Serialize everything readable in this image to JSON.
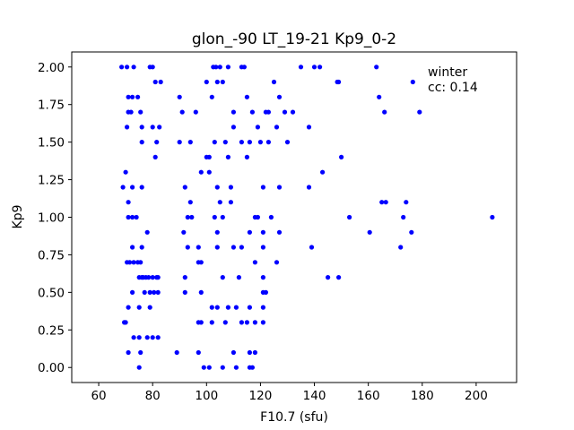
{
  "chart_data": {
    "type": "scatter",
    "title": "glon_-90 LT_19-21 Kp9_0-2",
    "xlabel": "F10.7 (sfu)",
    "ylabel": "Kp9",
    "xlim": [
      50,
      215
    ],
    "ylim": [
      -0.1,
      2.1
    ],
    "xticks": [
      60,
      80,
      100,
      120,
      140,
      160,
      180,
      200
    ],
    "yticks": [
      0.0,
      0.25,
      0.5,
      0.75,
      1.0,
      1.25,
      1.5,
      1.75,
      2.0
    ],
    "ytick_labels": [
      "0.00",
      "0.25",
      "0.50",
      "0.75",
      "1.00",
      "1.25",
      "1.50",
      "1.75",
      "2.00"
    ],
    "annotations": [
      "winter",
      "cc: 0.14"
    ],
    "marker_color": "#0000ff",
    "grid": false,
    "points": [
      [
        68.5,
        2.0
      ],
      [
        70.5,
        2.0
      ],
      [
        73,
        2.0
      ],
      [
        79,
        2.0
      ],
      [
        80,
        2.0
      ],
      [
        81,
        1.9
      ],
      [
        83,
        1.9
      ],
      [
        71,
        1.8
      ],
      [
        72.5,
        1.8
      ],
      [
        74.5,
        1.8
      ],
      [
        71,
        1.7
      ],
      [
        72,
        1.7
      ],
      [
        75.5,
        1.7
      ],
      [
        70.5,
        1.6
      ],
      [
        76,
        1.6
      ],
      [
        80,
        1.6
      ],
      [
        82.5,
        1.6
      ],
      [
        76,
        1.5
      ],
      [
        81.5,
        1.5
      ],
      [
        81,
        1.4
      ],
      [
        70,
        1.3
      ],
      [
        69,
        1.2
      ],
      [
        72.5,
        1.2
      ],
      [
        76,
        1.2
      ],
      [
        71,
        1.1
      ],
      [
        71,
        1.0
      ],
      [
        72.5,
        1.0
      ],
      [
        74,
        1.0
      ],
      [
        78,
        0.9
      ],
      [
        72.5,
        0.8
      ],
      [
        76,
        0.8
      ],
      [
        70.5,
        0.7
      ],
      [
        71.5,
        0.7
      ],
      [
        73,
        0.7
      ],
      [
        74.5,
        0.7
      ],
      [
        75.5,
        0.7
      ],
      [
        75,
        0.6
      ],
      [
        76,
        0.6
      ],
      [
        76.5,
        0.6
      ],
      [
        77.5,
        0.6
      ],
      [
        78.5,
        0.6
      ],
      [
        80,
        0.6
      ],
      [
        81.5,
        0.6
      ],
      [
        82,
        0.6
      ],
      [
        72.5,
        0.5
      ],
      [
        77,
        0.5
      ],
      [
        79,
        0.5
      ],
      [
        80.5,
        0.5
      ],
      [
        82,
        0.5
      ],
      [
        71,
        0.4
      ],
      [
        75,
        0.4
      ],
      [
        79,
        0.4
      ],
      [
        69.5,
        0.3
      ],
      [
        70,
        0.3
      ],
      [
        73,
        0.2
      ],
      [
        75,
        0.2
      ],
      [
        78,
        0.2
      ],
      [
        80,
        0.2
      ],
      [
        82,
        0.2
      ],
      [
        71,
        0.1
      ],
      [
        75.5,
        0.1
      ],
      [
        75,
        0.0
      ],
      [
        102.5,
        2.0
      ],
      [
        103.5,
        2.0
      ],
      [
        105,
        2.0
      ],
      [
        108,
        2.0
      ],
      [
        113,
        2.0
      ],
      [
        114,
        2.0
      ],
      [
        100,
        1.9
      ],
      [
        104,
        1.9
      ],
      [
        106,
        1.9
      ],
      [
        90,
        1.8
      ],
      [
        102,
        1.8
      ],
      [
        115,
        1.8
      ],
      [
        91,
        1.7
      ],
      [
        96,
        1.7
      ],
      [
        110,
        1.7
      ],
      [
        117,
        1.7
      ],
      [
        110,
        1.6
      ],
      [
        119,
        1.6
      ],
      [
        90,
        1.5
      ],
      [
        94,
        1.5
      ],
      [
        103,
        1.5
      ],
      [
        107,
        1.5
      ],
      [
        113,
        1.5
      ],
      [
        116,
        1.5
      ],
      [
        108,
        1.4
      ],
      [
        101,
        1.4
      ],
      [
        100,
        1.4
      ],
      [
        115,
        1.4
      ],
      [
        98,
        1.3
      ],
      [
        101,
        1.3
      ],
      [
        92,
        1.2
      ],
      [
        104,
        1.2
      ],
      [
        109,
        1.2
      ],
      [
        94,
        1.1
      ],
      [
        105,
        1.1
      ],
      [
        109,
        1.1
      ],
      [
        93,
        1.0
      ],
      [
        94.5,
        1.0
      ],
      [
        103,
        1.0
      ],
      [
        106,
        1.0
      ],
      [
        91.5,
        0.9
      ],
      [
        104,
        0.9
      ],
      [
        116,
        0.9
      ],
      [
        93,
        0.8
      ],
      [
        97,
        0.8
      ],
      [
        104,
        0.8
      ],
      [
        110,
        0.8
      ],
      [
        113,
        0.8
      ],
      [
        97,
        0.7
      ],
      [
        98,
        0.7
      ],
      [
        92,
        0.6
      ],
      [
        106,
        0.6
      ],
      [
        112,
        0.6
      ],
      [
        92,
        0.5
      ],
      [
        98,
        0.5
      ],
      [
        102,
        0.4
      ],
      [
        104,
        0.4
      ],
      [
        108,
        0.4
      ],
      [
        111,
        0.4
      ],
      [
        116,
        0.4
      ],
      [
        97,
        0.3
      ],
      [
        98,
        0.3
      ],
      [
        102,
        0.3
      ],
      [
        107,
        0.3
      ],
      [
        113,
        0.3
      ],
      [
        115,
        0.3
      ],
      [
        89,
        0.1
      ],
      [
        97,
        0.1
      ],
      [
        110,
        0.1
      ],
      [
        116,
        0.1
      ],
      [
        99,
        0.0
      ],
      [
        101,
        0.0
      ],
      [
        106,
        0.0
      ],
      [
        111,
        0.0
      ],
      [
        116,
        0.0
      ],
      [
        135,
        2.0
      ],
      [
        140,
        2.0
      ],
      [
        142,
        2.0
      ],
      [
        125,
        1.9
      ],
      [
        148.5,
        1.9
      ],
      [
        149,
        1.9
      ],
      [
        127,
        1.8
      ],
      [
        122,
        1.7
      ],
      [
        123,
        1.7
      ],
      [
        129,
        1.7
      ],
      [
        132,
        1.7
      ],
      [
        126,
        1.6
      ],
      [
        138,
        1.6
      ],
      [
        120,
        1.5
      ],
      [
        123,
        1.5
      ],
      [
        130,
        1.5
      ],
      [
        150,
        1.4
      ],
      [
        143,
        1.3
      ],
      [
        127,
        1.2
      ],
      [
        138,
        1.2
      ],
      [
        121,
        1.2
      ],
      [
        118,
        1.0
      ],
      [
        119,
        1.0
      ],
      [
        124,
        1.0
      ],
      [
        153,
        1.0
      ],
      [
        121,
        0.9
      ],
      [
        127,
        0.9
      ],
      [
        121,
        0.8
      ],
      [
        139,
        0.8
      ],
      [
        118,
        0.7
      ],
      [
        126,
        0.7
      ],
      [
        121,
        0.6
      ],
      [
        145,
        0.6
      ],
      [
        149,
        0.6
      ],
      [
        121,
        0.5
      ],
      [
        122,
        0.5
      ],
      [
        121,
        0.4
      ],
      [
        118,
        0.3
      ],
      [
        121,
        0.3
      ],
      [
        118,
        0.1
      ],
      [
        117,
        0.0
      ],
      [
        163,
        2.0
      ],
      [
        176.5,
        1.9
      ],
      [
        164,
        1.8
      ],
      [
        166,
        1.7
      ],
      [
        179,
        1.7
      ],
      [
        165,
        1.1
      ],
      [
        166.5,
        1.1
      ],
      [
        174,
        1.1
      ],
      [
        173,
        1.0
      ],
      [
        160.5,
        0.9
      ],
      [
        176,
        0.9
      ],
      [
        172,
        0.8
      ],
      [
        206,
        1.0
      ]
    ]
  }
}
